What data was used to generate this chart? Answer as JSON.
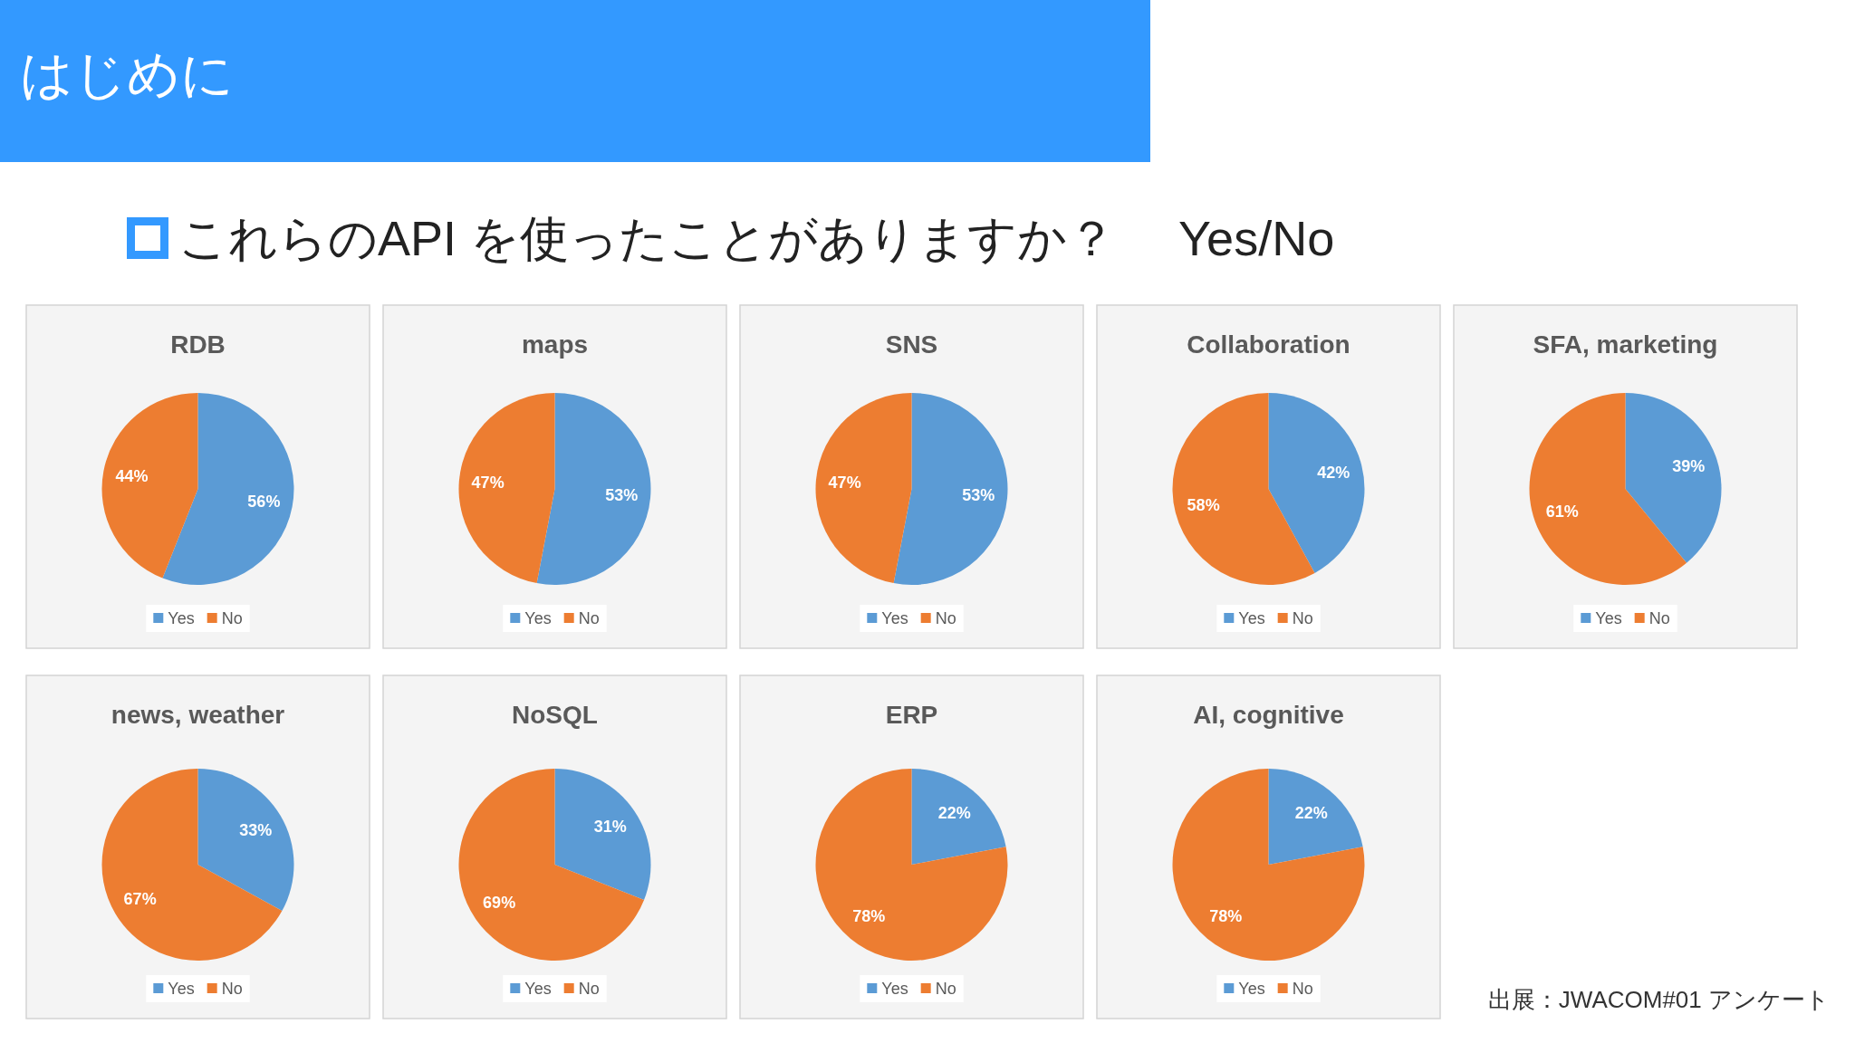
{
  "chart_data": [
    {
      "type": "other",
      "title": "はじめに",
      "subtitle": "これらのAPI を使ったことがありますか？　 Yes/No",
      "annotations": [
        "出展：JWACOM#01 アンケート"
      ]
    },
    {
      "type": "pie",
      "title": "RDB",
      "categories": [
        "Yes",
        "No"
      ],
      "values": [
        56,
        44
      ],
      "colors": [
        "#5b9bd5",
        "#ed7d31"
      ],
      "value_labels": [
        "56%",
        "44%"
      ],
      "legend": "bottom"
    },
    {
      "type": "pie",
      "title": "maps",
      "categories": [
        "Yes",
        "No"
      ],
      "values": [
        53,
        47
      ],
      "colors": [
        "#5b9bd5",
        "#ed7d31"
      ],
      "value_labels": [
        "53%",
        "47%"
      ],
      "legend": "bottom"
    },
    {
      "type": "pie",
      "title": "SNS",
      "categories": [
        "Yes",
        "No"
      ],
      "values": [
        53,
        47
      ],
      "colors": [
        "#5b9bd5",
        "#ed7d31"
      ],
      "value_labels": [
        "53%",
        "47%"
      ],
      "legend": "bottom"
    },
    {
      "type": "pie",
      "title": "Collaboration",
      "categories": [
        "Yes",
        "No"
      ],
      "values": [
        42,
        58
      ],
      "colors": [
        "#5b9bd5",
        "#ed7d31"
      ],
      "value_labels": [
        "42%",
        "58%"
      ],
      "legend": "bottom"
    },
    {
      "type": "pie",
      "title": "SFA, marketing",
      "categories": [
        "Yes",
        "No"
      ],
      "values": [
        39,
        61
      ],
      "colors": [
        "#5b9bd5",
        "#ed7d31"
      ],
      "value_labels": [
        "39%",
        "61%"
      ],
      "legend": "bottom"
    },
    {
      "type": "pie",
      "title": "news, weather",
      "categories": [
        "Yes",
        "No"
      ],
      "values": [
        33,
        67
      ],
      "colors": [
        "#5b9bd5",
        "#ed7d31"
      ],
      "value_labels": [
        "33%",
        "67%"
      ],
      "legend": "bottom"
    },
    {
      "type": "pie",
      "title": "NoSQL",
      "categories": [
        "Yes",
        "No"
      ],
      "values": [
        31,
        69
      ],
      "colors": [
        "#5b9bd5",
        "#ed7d31"
      ],
      "value_labels": [
        "31%",
        "69%"
      ],
      "legend": "bottom"
    },
    {
      "type": "pie",
      "title": "ERP",
      "categories": [
        "Yes",
        "No"
      ],
      "values": [
        22,
        78
      ],
      "colors": [
        "#5b9bd5",
        "#ed7d31"
      ],
      "value_labels": [
        "22%",
        "78%"
      ],
      "legend": "bottom"
    },
    {
      "type": "pie",
      "title": "AI, cognitive",
      "categories": [
        "Yes",
        "No"
      ],
      "values": [
        22,
        78
      ],
      "colors": [
        "#5b9bd5",
        "#ed7d31"
      ],
      "value_labels": [
        "22%",
        "78%"
      ],
      "legend": "bottom"
    }
  ]
}
